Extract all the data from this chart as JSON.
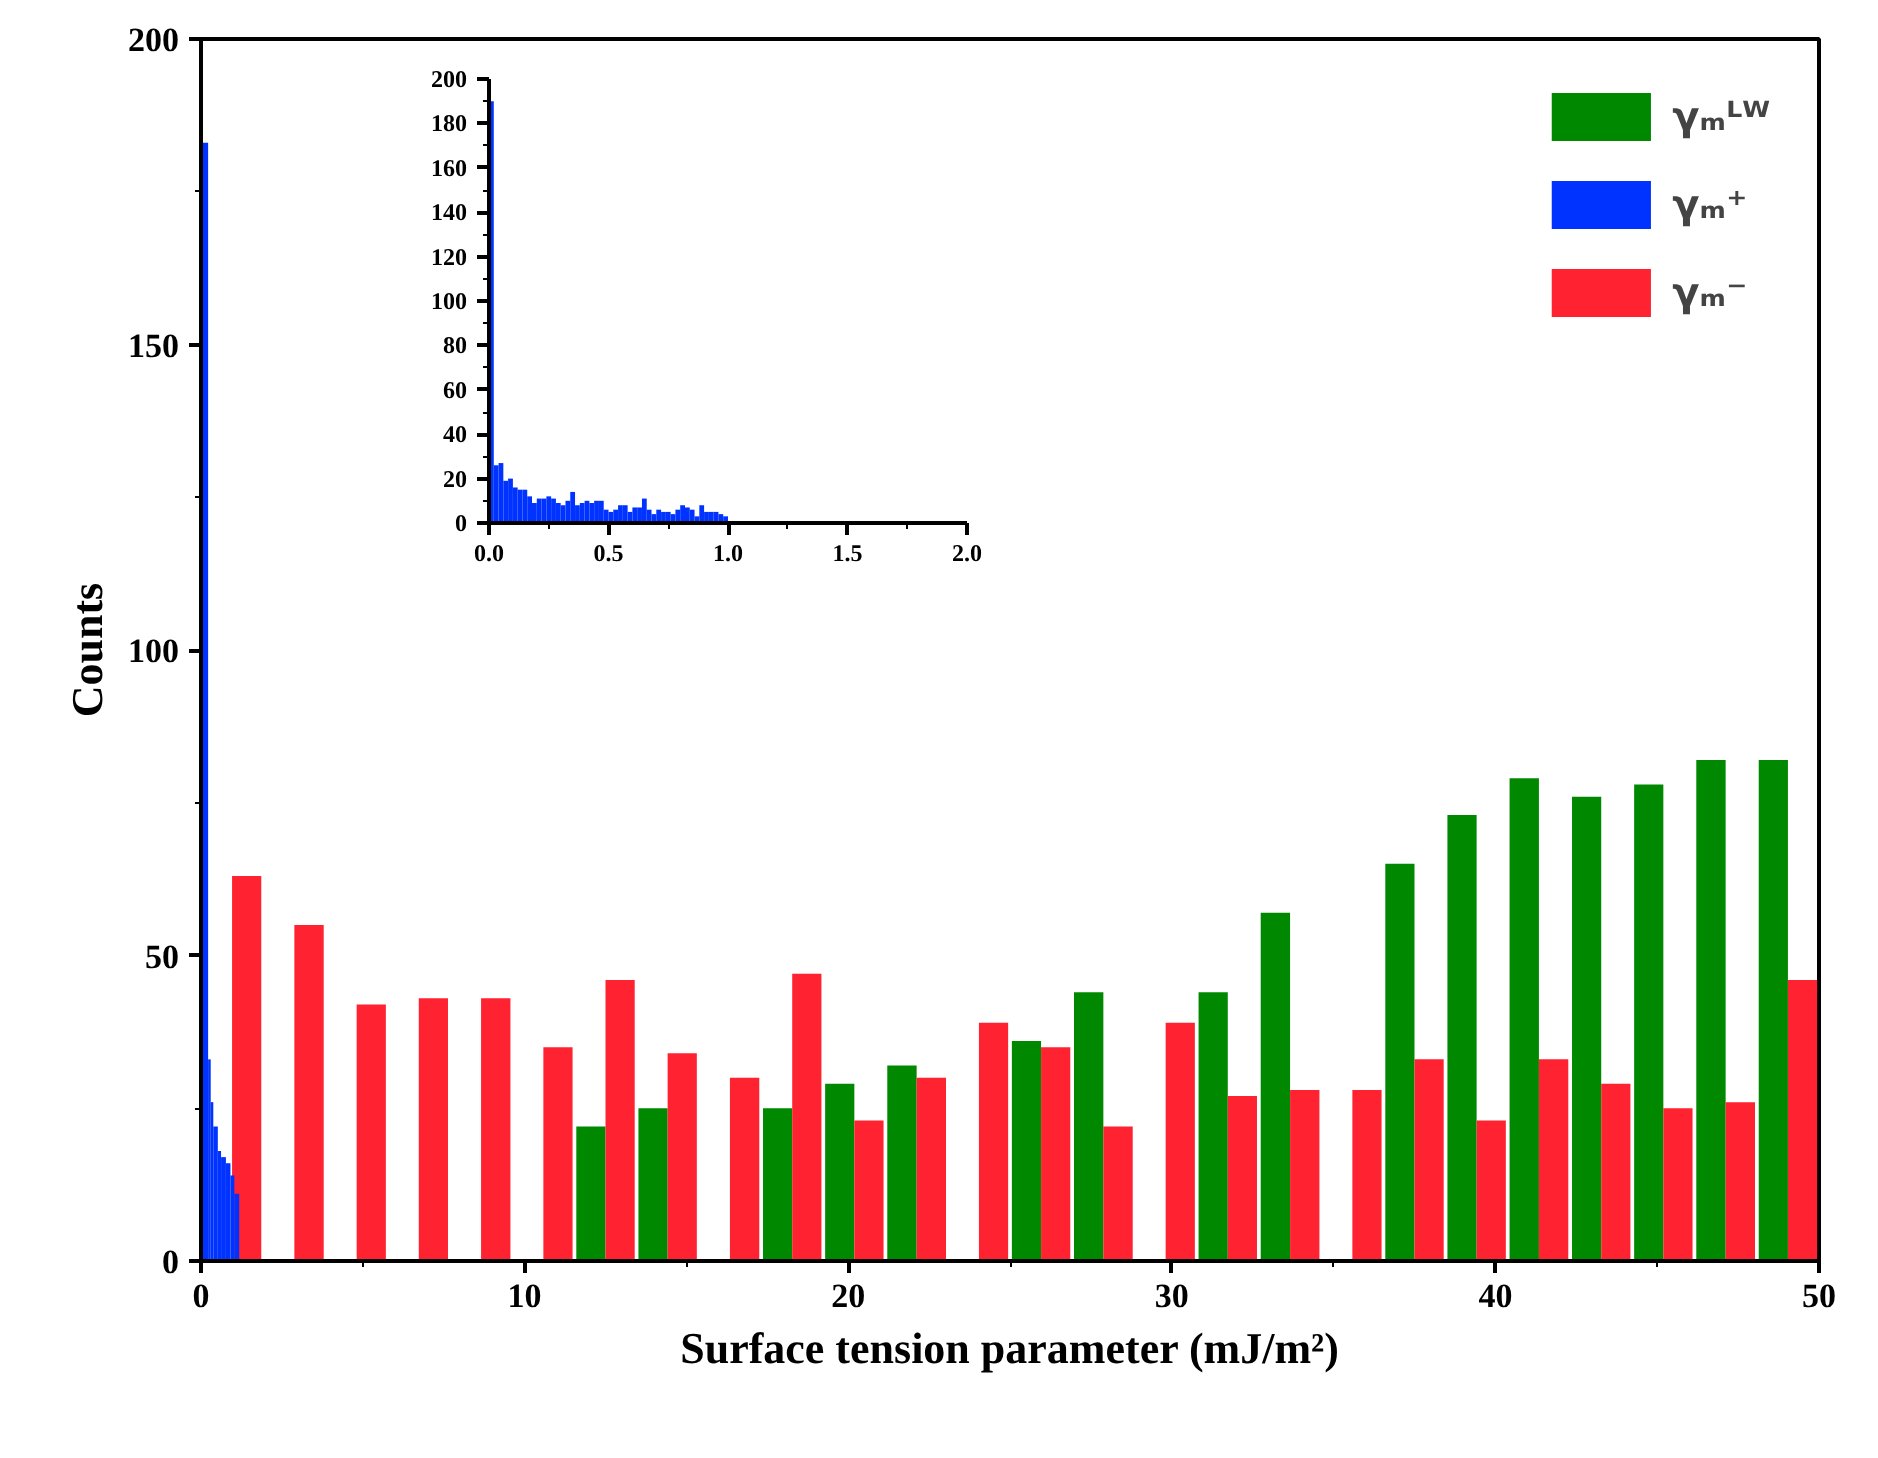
{
  "chart_data": [
    {
      "type": "histogram",
      "xlabel": "Surface tension parameter (mJ/m²)",
      "ylabel": "Counts",
      "bins": [
        0,
        1.92,
        3.85,
        5.77,
        7.69,
        9.62,
        11.54,
        13.46,
        15.38,
        17.31,
        19.23,
        21.15,
        23.08,
        25,
        26.92,
        28.85,
        30.77,
        32.69,
        34.62,
        36.54,
        38.46,
        40.38,
        42.31,
        44.23,
        46.15,
        48.08,
        50
      ],
      "series": [
        {
          "name": "γₘᴸᵂ",
          "color": "#008800",
          "values": [
            0,
            0,
            0,
            0,
            0,
            0,
            22,
            25,
            0,
            25,
            29,
            32,
            0,
            36,
            44,
            0,
            44,
            57,
            0,
            65,
            73,
            79,
            76,
            78,
            82,
            82
          ]
        },
        {
          "name": "γₘ⁺",
          "color": "#0033ff",
          "bins": [
            0,
            0.22,
            0.3,
            0.38,
            0.52,
            0.62,
            0.77,
            0.91,
            1.03,
            1.18
          ],
          "values": [
            183,
            33,
            26,
            22,
            18,
            17,
            16,
            14,
            11
          ]
        },
        {
          "name": "γₘ⁻",
          "color": "#ff2230",
          "values": [
            63,
            55,
            42,
            43,
            43,
            35,
            46,
            34,
            30,
            47,
            23,
            30,
            39,
            35,
            22,
            39,
            27,
            28,
            28,
            33,
            23,
            33,
            29,
            25,
            26,
            46
          ]
        }
      ],
      "xlim": [
        0,
        50
      ],
      "ylim": [
        0,
        200
      ],
      "xticks": [
        0,
        10,
        20,
        30,
        40,
        50
      ],
      "yticks": [
        0,
        50,
        100,
        150,
        200
      ],
      "legend": "top right"
    },
    {
      "type": "histogram",
      "bins": [
        0,
        0.02,
        0.04,
        0.06,
        0.08,
        0.1,
        0.12,
        0.14,
        0.16,
        0.18,
        0.2,
        0.22,
        0.24,
        0.26,
        0.28,
        0.3,
        0.32,
        0.34,
        0.36,
        0.38,
        0.4,
        0.42,
        0.44,
        0.46,
        0.48,
        0.5,
        0.52,
        0.54,
        0.56,
        0.58,
        0.6,
        0.62,
        0.64,
        0.66,
        0.68,
        0.7,
        0.72,
        0.74,
        0.76,
        0.78,
        0.8,
        0.82,
        0.84,
        0.86,
        0.88,
        0.9,
        0.92,
        0.94,
        0.96,
        0.98,
        1.0
      ],
      "series": [
        {
          "color": "#0033ff",
          "values": [
            190,
            26,
            27,
            19,
            20,
            16,
            15,
            15,
            12,
            9,
            11,
            11,
            12,
            11,
            9,
            8,
            10,
            14,
            8,
            9,
            10,
            9,
            10,
            10,
            6,
            5,
            6,
            8,
            8,
            5,
            7,
            7,
            11,
            6,
            4,
            6,
            5,
            5,
            4,
            6,
            8,
            7,
            6,
            3,
            8,
            5,
            5,
            5,
            4,
            3
          ]
        }
      ],
      "xlim": [
        0,
        2
      ],
      "ylim": [
        0,
        200
      ],
      "xticks": [
        {
          "value": 0,
          "label": "0.0"
        },
        {
          "value": 0.5,
          "label": "0.5"
        },
        {
          "value": 1,
          "label": "1.0"
        },
        {
          "value": 1.5,
          "label": "1.5"
        },
        {
          "value": 2,
          "label": "2.0"
        }
      ],
      "yticks": [
        0,
        20,
        40,
        60,
        80,
        100,
        120,
        140,
        160,
        180,
        200
      ]
    }
  ]
}
